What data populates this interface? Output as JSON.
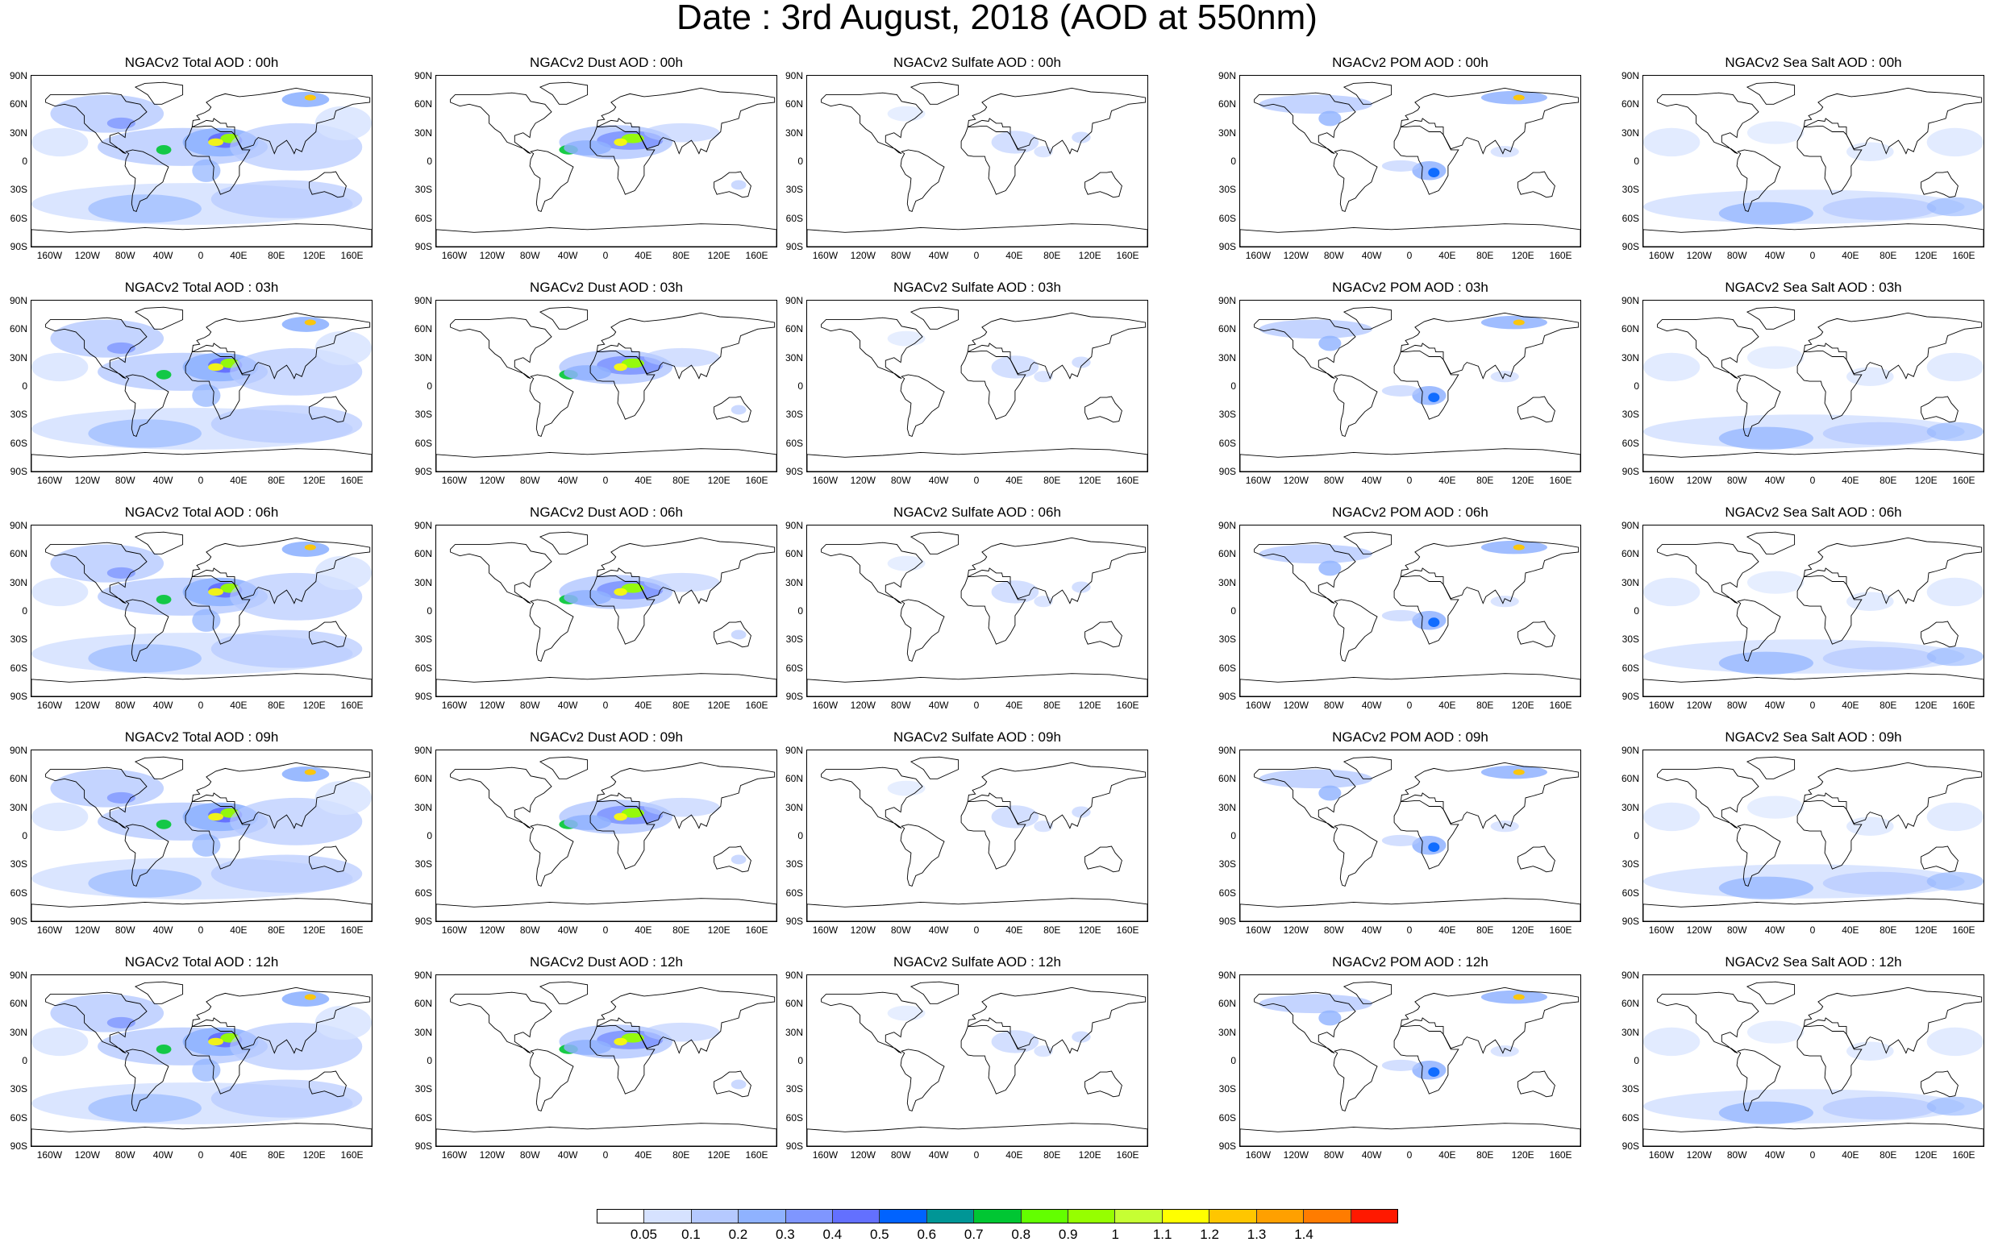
{
  "title": "Date : 3rd August, 2018 (AOD at 550nm)",
  "lat_labels": [
    "90N",
    "60N",
    "30N",
    "0",
    "30S",
    "60S",
    "90S"
  ],
  "lon_labels": [
    "160W",
    "120W",
    "80W",
    "40W",
    "0",
    "40E",
    "80E",
    "120E",
    "160E"
  ],
  "panels": [
    {
      "title": "NGACv2 Total AOD : 00h",
      "type": "total"
    },
    {
      "title": "NGACv2 Dust AOD : 00h",
      "type": "dust"
    },
    {
      "title": "NGACv2 Sulfate AOD : 00h",
      "type": "sulfate"
    },
    {
      "title": "NGACv2 POM AOD : 00h",
      "type": "pom"
    },
    {
      "title": "NGACv2 Sea Salt AOD : 00h",
      "type": "seasalt"
    },
    {
      "title": "NGACv2 Total AOD : 03h",
      "type": "total"
    },
    {
      "title": "NGACv2 Dust AOD : 03h",
      "type": "dust"
    },
    {
      "title": "NGACv2 Sulfate AOD : 03h",
      "type": "sulfate"
    },
    {
      "title": "NGACv2 POM AOD : 03h",
      "type": "pom"
    },
    {
      "title": "NGACv2 Sea Salt AOD : 03h",
      "type": "seasalt"
    },
    {
      "title": "NGACv2 Total AOD : 06h",
      "type": "total"
    },
    {
      "title": "NGACv2 Dust AOD : 06h",
      "type": "dust"
    },
    {
      "title": "NGACv2 Sulfate AOD : 06h",
      "type": "sulfate"
    },
    {
      "title": "NGACv2 POM AOD : 06h",
      "type": "pom"
    },
    {
      "title": "NGACv2 Sea Salt AOD : 06h",
      "type": "seasalt"
    },
    {
      "title": "NGACv2 Total AOD : 09h",
      "type": "total"
    },
    {
      "title": "NGACv2 Dust AOD : 09h",
      "type": "dust"
    },
    {
      "title": "NGACv2 Sulfate AOD : 09h",
      "type": "sulfate"
    },
    {
      "title": "NGACv2 POM AOD : 09h",
      "type": "pom"
    },
    {
      "title": "NGACv2 Sea Salt  AOD : 09h",
      "type": "seasalt"
    },
    {
      "title": "NGACv2 Total AOD : 12h",
      "type": "total"
    },
    {
      "title": "NGACv2 Dust AOD : 12h",
      "type": "dust"
    },
    {
      "title": "NGACv2 Sulfate AOD : 12h",
      "type": "sulfate"
    },
    {
      "title": "NGACv2 POM  AOD : 12h",
      "type": "pom"
    },
    {
      "title": "NGACv2 Sea Salt AOD : 12h",
      "type": "seasalt"
    }
  ],
  "colorbar": {
    "labels": [
      "0.05",
      "0.1",
      "0.2",
      "0.3",
      "0.4",
      "0.5",
      "0.6",
      "0.7",
      "0.8",
      "0.9",
      "1",
      "1.1",
      "1.2",
      "1.3",
      "1.4"
    ],
    "colors": [
      "#ffffff",
      "#d6e2ff",
      "#b5c9ff",
      "#8fb2ff",
      "#7f96ff",
      "#6370ff",
      "#0063ff",
      "#009696",
      "#00c633",
      "#63ff00",
      "#96ff00",
      "#c6ff33",
      "#ffff00",
      "#ffc600",
      "#ffa000",
      "#ff7c00",
      "#ff1900"
    ]
  },
  "map_colors": {
    "land_line": "#000000",
    "aod_light": "#d6e2ff",
    "aod_mid": "#b5c9ff",
    "aod_blue": "#8fb2ff",
    "aod_dark": "#6370ff"
  }
}
